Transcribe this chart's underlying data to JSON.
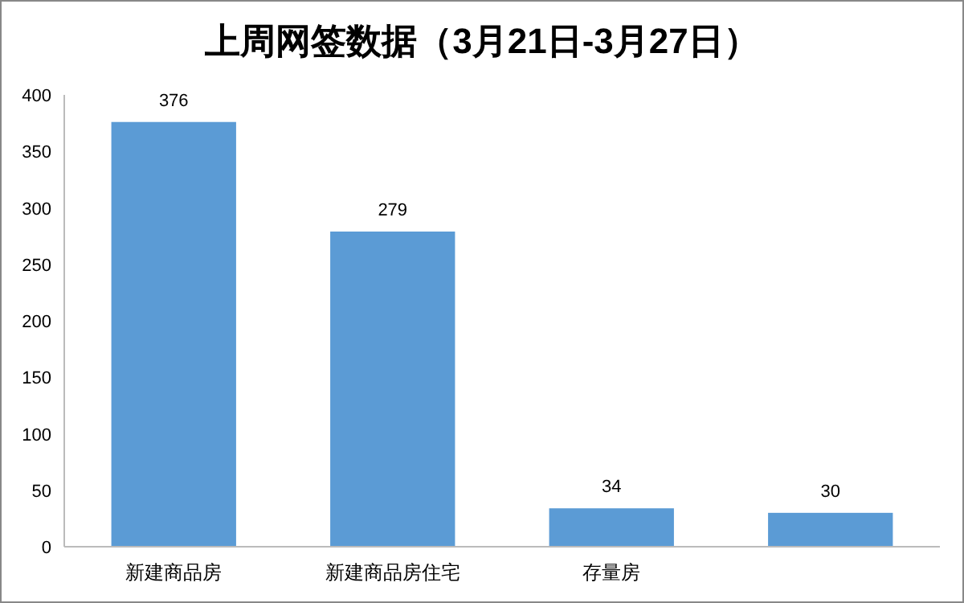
{
  "chart_data": {
    "type": "bar",
    "title": "上周网签数据（3月21日-3月27日）",
    "categories": [
      "新建商品房",
      "新建商品房住宅",
      "存量房",
      null
    ],
    "values": [
      376,
      279,
      34,
      30
    ],
    "color": "#5b9bd5",
    "ylim": [
      0,
      400
    ],
    "yticks": [
      0,
      50,
      100,
      150,
      200,
      250,
      300,
      350,
      400
    ],
    "data_labels": true
  }
}
